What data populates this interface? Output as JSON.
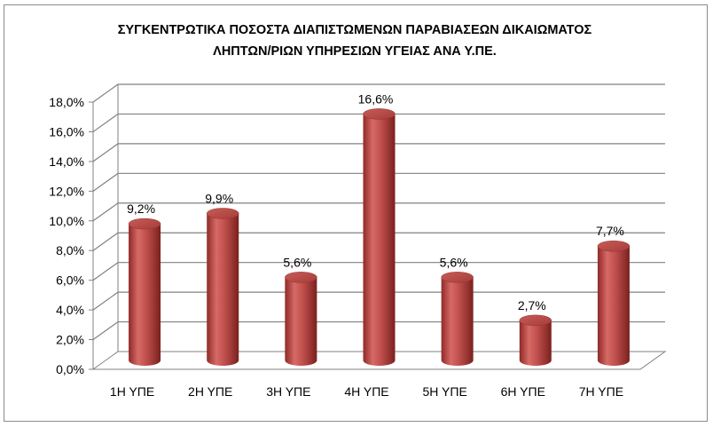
{
  "chart_data": {
    "type": "bar",
    "title_line1": "ΣΥΓΚΕΝΤΡΩΤΙΚΑ ΠΟΣΟΣΤΑ ΔΙΑΠΙΣΤΩΜΕΝΩΝ ΠΑΡΑΒΙΑΣΕΩΝ ΔΙΚΑΙΩΜΑΤΟΣ",
    "title_line2": "ΛΗΠΤΩΝ/ΡΙΩΝ ΥΠΗΡΕΣΙΩΝ ΥΓΕΙΑΣ ΑΝΑ Υ.ΠΕ.",
    "categories": [
      "1Η ΥΠΕ",
      "2Η ΥΠΕ",
      "3Η ΥΠΕ",
      "4Η ΥΠΕ",
      "5Η ΥΠΕ",
      "6Η ΥΠΕ",
      "7Η ΥΠΕ"
    ],
    "values": [
      9.2,
      9.9,
      5.6,
      16.6,
      5.6,
      2.7,
      7.7
    ],
    "value_labels": [
      "9,2%",
      "9,9%",
      "5,6%",
      "16,6%",
      "5,6%",
      "2,7%",
      "7,7%"
    ],
    "ylim": [
      0,
      18
    ],
    "yticks": [
      0,
      2,
      4,
      6,
      8,
      10,
      12,
      14,
      16,
      18
    ],
    "ytick_labels": [
      "0,0%",
      "2,0%",
      "4,0%",
      "6,0%",
      "8,0%",
      "10,0%",
      "12,0%",
      "14,0%",
      "16,0%",
      "18,0%"
    ],
    "grid": true,
    "style": "3d-cylinder",
    "bar_color": "#c0504d"
  }
}
